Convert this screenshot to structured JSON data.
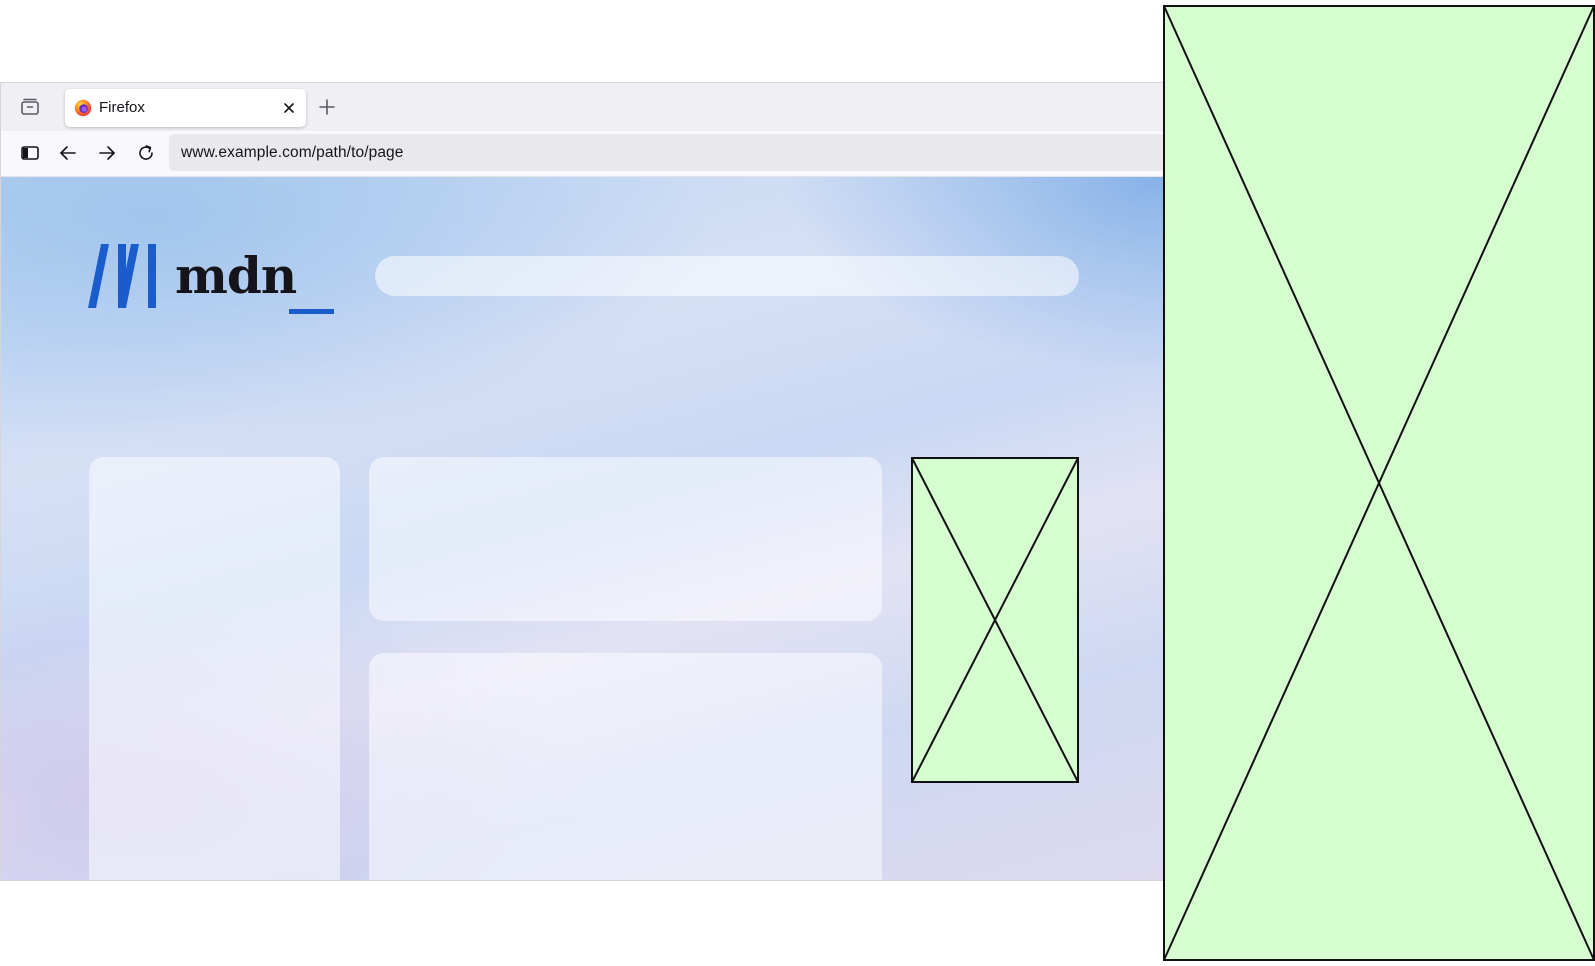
{
  "browser": {
    "tab": {
      "title": "Firefox"
    },
    "address_bar": {
      "url": "www.example.com/path/to/page"
    }
  },
  "page": {
    "logo_text": "mdn"
  },
  "colors": {
    "brand_blue": "#1a5ccc",
    "placeholder_fill": "#d6fdd0",
    "placeholder_stroke": "#111111"
  },
  "icons": {
    "tab_list": "tab-list-icon",
    "favicon": "firefox-icon",
    "close": "close-icon",
    "new_tab": "plus-icon",
    "sidebar": "sidebar-icon",
    "back": "back-arrow-icon",
    "forward": "forward-arrow-icon",
    "reload": "reload-icon"
  }
}
